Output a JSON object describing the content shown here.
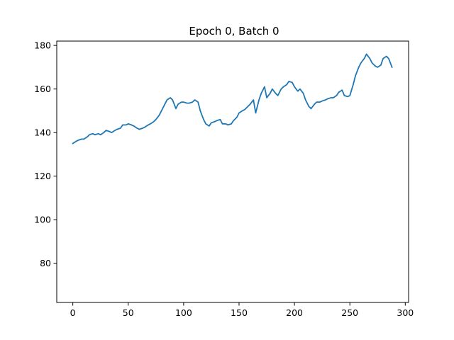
{
  "chart_data": {
    "type": "line",
    "title": "Epoch 0, Batch 0",
    "xlabel": "",
    "ylabel": "",
    "xlim": [
      -14.5,
      303
    ],
    "ylim": [
      62,
      182
    ],
    "xticks": [
      0,
      50,
      100,
      150,
      200,
      250,
      300
    ],
    "yticks": [
      80,
      100,
      120,
      140,
      160,
      180
    ],
    "grid": false,
    "series_color": "#1f77b4",
    "series": [
      {
        "x": [
          0,
          3,
          5,
          8,
          10,
          13,
          15,
          18,
          20,
          23,
          25,
          28,
          30,
          33,
          35,
          38,
          40,
          43,
          45,
          48,
          50,
          53,
          55,
          58,
          60,
          63,
          65,
          68,
          70,
          73,
          75,
          78,
          80,
          83,
          85,
          88,
          90,
          93,
          95,
          98,
          100,
          103,
          105,
          108,
          110,
          113,
          115,
          118,
          120,
          123,
          125,
          128,
          130,
          133,
          135,
          138,
          140,
          143,
          145,
          148,
          150,
          153,
          155,
          158,
          160,
          163,
          165,
          168,
          170,
          173,
          175,
          178,
          180,
          183,
          185,
          188,
          190,
          193,
          195,
          198,
          200,
          203,
          205,
          208,
          210,
          213,
          215,
          218,
          220,
          223,
          225,
          228,
          230,
          233,
          235,
          238,
          240,
          243,
          245,
          248,
          250,
          253,
          255,
          258,
          260,
          263,
          265,
          268,
          270,
          273,
          275,
          278,
          280,
          283,
          285,
          288
        ],
        "y": [
          135,
          136,
          136.5,
          137,
          137,
          138,
          139,
          139.5,
          139,
          139.5,
          139,
          140,
          141,
          140.5,
          140,
          141,
          141.5,
          142,
          143.5,
          143.5,
          144,
          143.5,
          143,
          142,
          141.5,
          142,
          142.5,
          143.5,
          144,
          145,
          146,
          148,
          150,
          153,
          155,
          156,
          155,
          151,
          153,
          154,
          154,
          153.5,
          153.5,
          154,
          155,
          154,
          150,
          146,
          144,
          143,
          144.5,
          145,
          145.5,
          146,
          144,
          144,
          143.5,
          144,
          145.5,
          147,
          149,
          150,
          150.5,
          152,
          153,
          155,
          149,
          155,
          158,
          161,
          156,
          158,
          160,
          158,
          157,
          160,
          161,
          162,
          163.5,
          163,
          161,
          159,
          160,
          158,
          155,
          152,
          151,
          153,
          154,
          154,
          154.5,
          155,
          155.5,
          156,
          156,
          157,
          158.5,
          159.5,
          157,
          156.5,
          157,
          162,
          166,
          170,
          172,
          174,
          176,
          174,
          172,
          170.5,
          170,
          171,
          174,
          175,
          174,
          170
        ]
      }
    ]
  }
}
